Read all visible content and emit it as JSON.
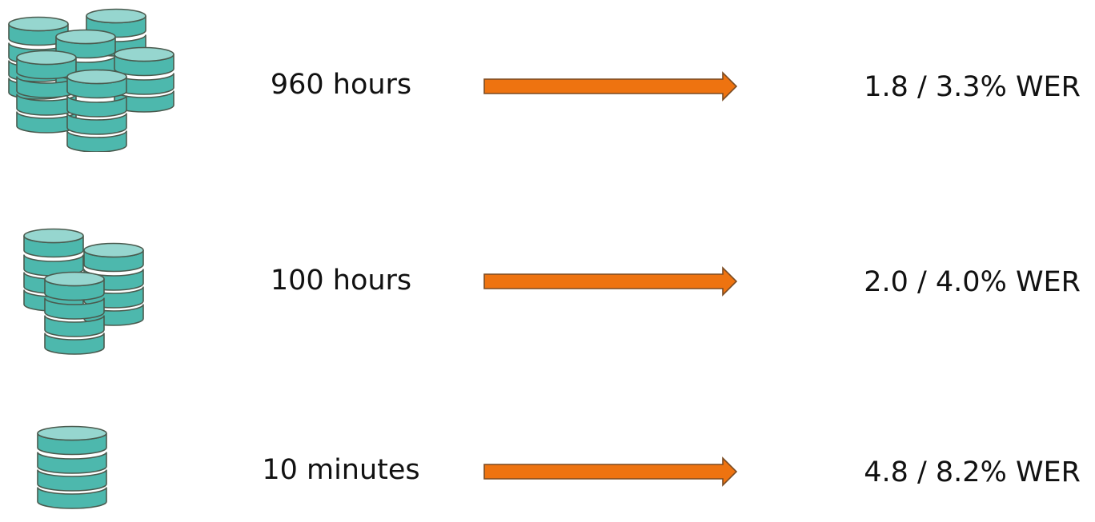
{
  "colors": {
    "cylinder_fill": "#4db8ad",
    "cylinder_top": "#96d6cf",
    "cylinder_stroke": "#4a5a4e",
    "arrow_fill": "#ee7310",
    "arrow_stroke": "#7a4b22"
  },
  "rows": [
    {
      "icon": "database-cluster-large-icon",
      "amount": "960 hours",
      "result": "1.8 / 3.3% WER"
    },
    {
      "icon": "database-cluster-medium-icon",
      "amount": "100 hours",
      "result": "2.0 / 4.0% WER"
    },
    {
      "icon": "database-single-icon",
      "amount": "10 minutes",
      "result": "4.8 / 8.2% WER"
    }
  ]
}
